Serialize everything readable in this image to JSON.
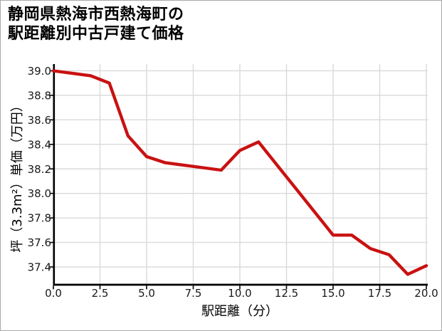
{
  "title": {
    "line1": "静岡県熱海市西熱海町の",
    "line2": "駅距離別中古戸建て価格"
  },
  "colors": {
    "line": "#c91111",
    "grid": "#d9d9d9",
    "spine": "#000000",
    "tick_text": "#1a1a1a",
    "background": "#ffffff",
    "border": "#a9a9a9"
  },
  "chart_data": {
    "type": "line",
    "title": "静岡県熱海市西熱海町の駅距離別中古戸建て価格",
    "xlabel": "駅距離（分）",
    "ylabel": "坪（3.3m²）単価（万円）",
    "x": [
      0,
      1,
      2,
      3,
      4,
      5,
      6,
      7,
      8,
      9,
      10,
      11,
      12,
      13,
      14,
      15,
      16,
      17,
      18,
      19,
      20
    ],
    "values": [
      39.0,
      38.98,
      38.96,
      38.9,
      38.47,
      38.3,
      38.25,
      38.23,
      38.21,
      38.19,
      38.35,
      38.42,
      38.23,
      38.04,
      37.85,
      37.66,
      37.66,
      37.55,
      37.5,
      37.34,
      37.41
    ],
    "x_ticks": [
      "0.0",
      "2.5",
      "5.0",
      "7.5",
      "10.0",
      "12.5",
      "15.0",
      "17.5",
      "20.0"
    ],
    "y_ticks": [
      "39.0",
      "38.8",
      "38.6",
      "38.4",
      "38.2",
      "38.0",
      "37.8",
      "37.6",
      "37.4"
    ],
    "xlim": [
      0,
      20
    ],
    "ylim": [
      37.255,
      39.055
    ],
    "grid": true,
    "legend": "none",
    "line_color": "#c91111"
  }
}
